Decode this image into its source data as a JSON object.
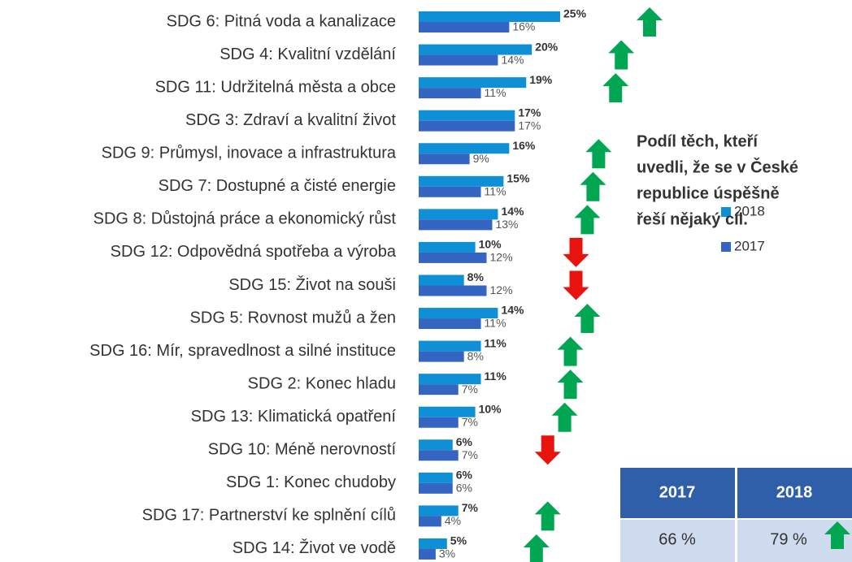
{
  "chart_data": {
    "type": "bar",
    "categories": [
      "SDG 6: Pitná voda a kanalizace",
      "SDG 4: Kvalitní vzdělání",
      "SDG 11: Udržitelná města a obce",
      "SDG 3: Zdraví a kvalitní život",
      "SDG 9: Průmysl, inovace a infrastruktura",
      "SDG 7: Dostupné a čisté energie",
      "SDG 8: Důstojná práce a ekonomický růst",
      "SDG 12: Odpovědná spotřeba a výroba",
      "SDG 15: Život na souši",
      "SDG 5: Rovnost mužů a žen",
      "SDG 16: Mír, spravedlnost a silné instituce",
      "SDG 2: Konec hladu",
      "SDG 13: Klimatická opatření",
      "SDG 10: Méně nerovností",
      "SDG 1: Konec chudoby",
      "SDG 17: Partnerství ke splnění cílů",
      "SDG 14: Život ve vodě"
    ],
    "series": [
      {
        "name": "2018",
        "color": "#0e8fd6",
        "values": [
          25,
          20,
          19,
          17,
          16,
          15,
          14,
          10,
          8,
          14,
          11,
          11,
          10,
          6,
          6,
          7,
          5
        ],
        "value_labels": [
          "25%",
          "20%",
          "19%",
          "17%",
          "16%",
          "15%",
          "14%",
          "10%",
          "8%",
          "14%",
          "11%",
          "11%",
          "10%",
          "6%",
          "6%",
          "7%",
          "5%"
        ]
      },
      {
        "name": "2017",
        "color": "#3565c2",
        "values": [
          16,
          14,
          11,
          17,
          9,
          11,
          13,
          12,
          12,
          11,
          8,
          7,
          7,
          7,
          6,
          4,
          3
        ],
        "value_labels": [
          "16%",
          "14%",
          "11%",
          "17%",
          "9%",
          "11%",
          "13%",
          "12%",
          "12%",
          "11%",
          "8%",
          "7%",
          "7%",
          "7%",
          "6%",
          "4%",
          "3%"
        ]
      }
    ],
    "up_color": "#00a651",
    "down_color": "#e8130f",
    "note": [
      "Podíl těch, kteří",
      "uvedli, že se v České",
      "republice úspěšně",
      "řeší nějaký cíl."
    ],
    "table": {
      "header": [
        "2017",
        "2018"
      ],
      "rows": [
        [
          "66 %",
          "79 %"
        ]
      ]
    }
  }
}
